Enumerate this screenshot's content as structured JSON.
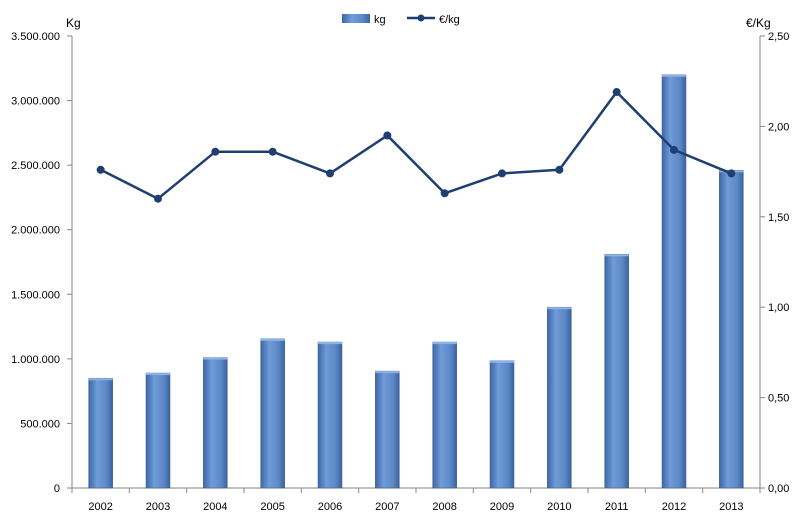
{
  "chart_data": {
    "type": "bar+line",
    "categories": [
      "2002",
      "2003",
      "2004",
      "2005",
      "2006",
      "2007",
      "2008",
      "2009",
      "2010",
      "2011",
      "2012",
      "2013"
    ],
    "series": [
      {
        "name": "kg",
        "type": "bar",
        "axis": "left",
        "color": "#5b87c5",
        "values": [
          850000,
          890000,
          1010000,
          1155000,
          1130000,
          905000,
          1130000,
          985000,
          1400000,
          1810000,
          3200000,
          2460000
        ]
      },
      {
        "name": "€/kg",
        "type": "line",
        "axis": "right",
        "color": "#1f3f70",
        "values": [
          1.76,
          1.6,
          1.86,
          1.86,
          1.74,
          1.95,
          1.63,
          1.74,
          1.76,
          2.19,
          1.87,
          1.74
        ]
      }
    ],
    "ylabel_left": "Kg",
    "ylabel_right": "€/Kg",
    "ylim_left": [
      0,
      3500000
    ],
    "ylim_right": [
      0,
      2.5
    ],
    "yticks_left": [
      "0",
      "500.000",
      "1.000.000",
      "1.500.000",
      "2.000.000",
      "2.500.000",
      "3.000.000",
      "3.500.000"
    ],
    "yticks_right": [
      "0,00",
      "0,50",
      "1,00",
      "1,50",
      "2,00",
      "2,50"
    ],
    "legend_position": "top-center",
    "grid": false
  }
}
